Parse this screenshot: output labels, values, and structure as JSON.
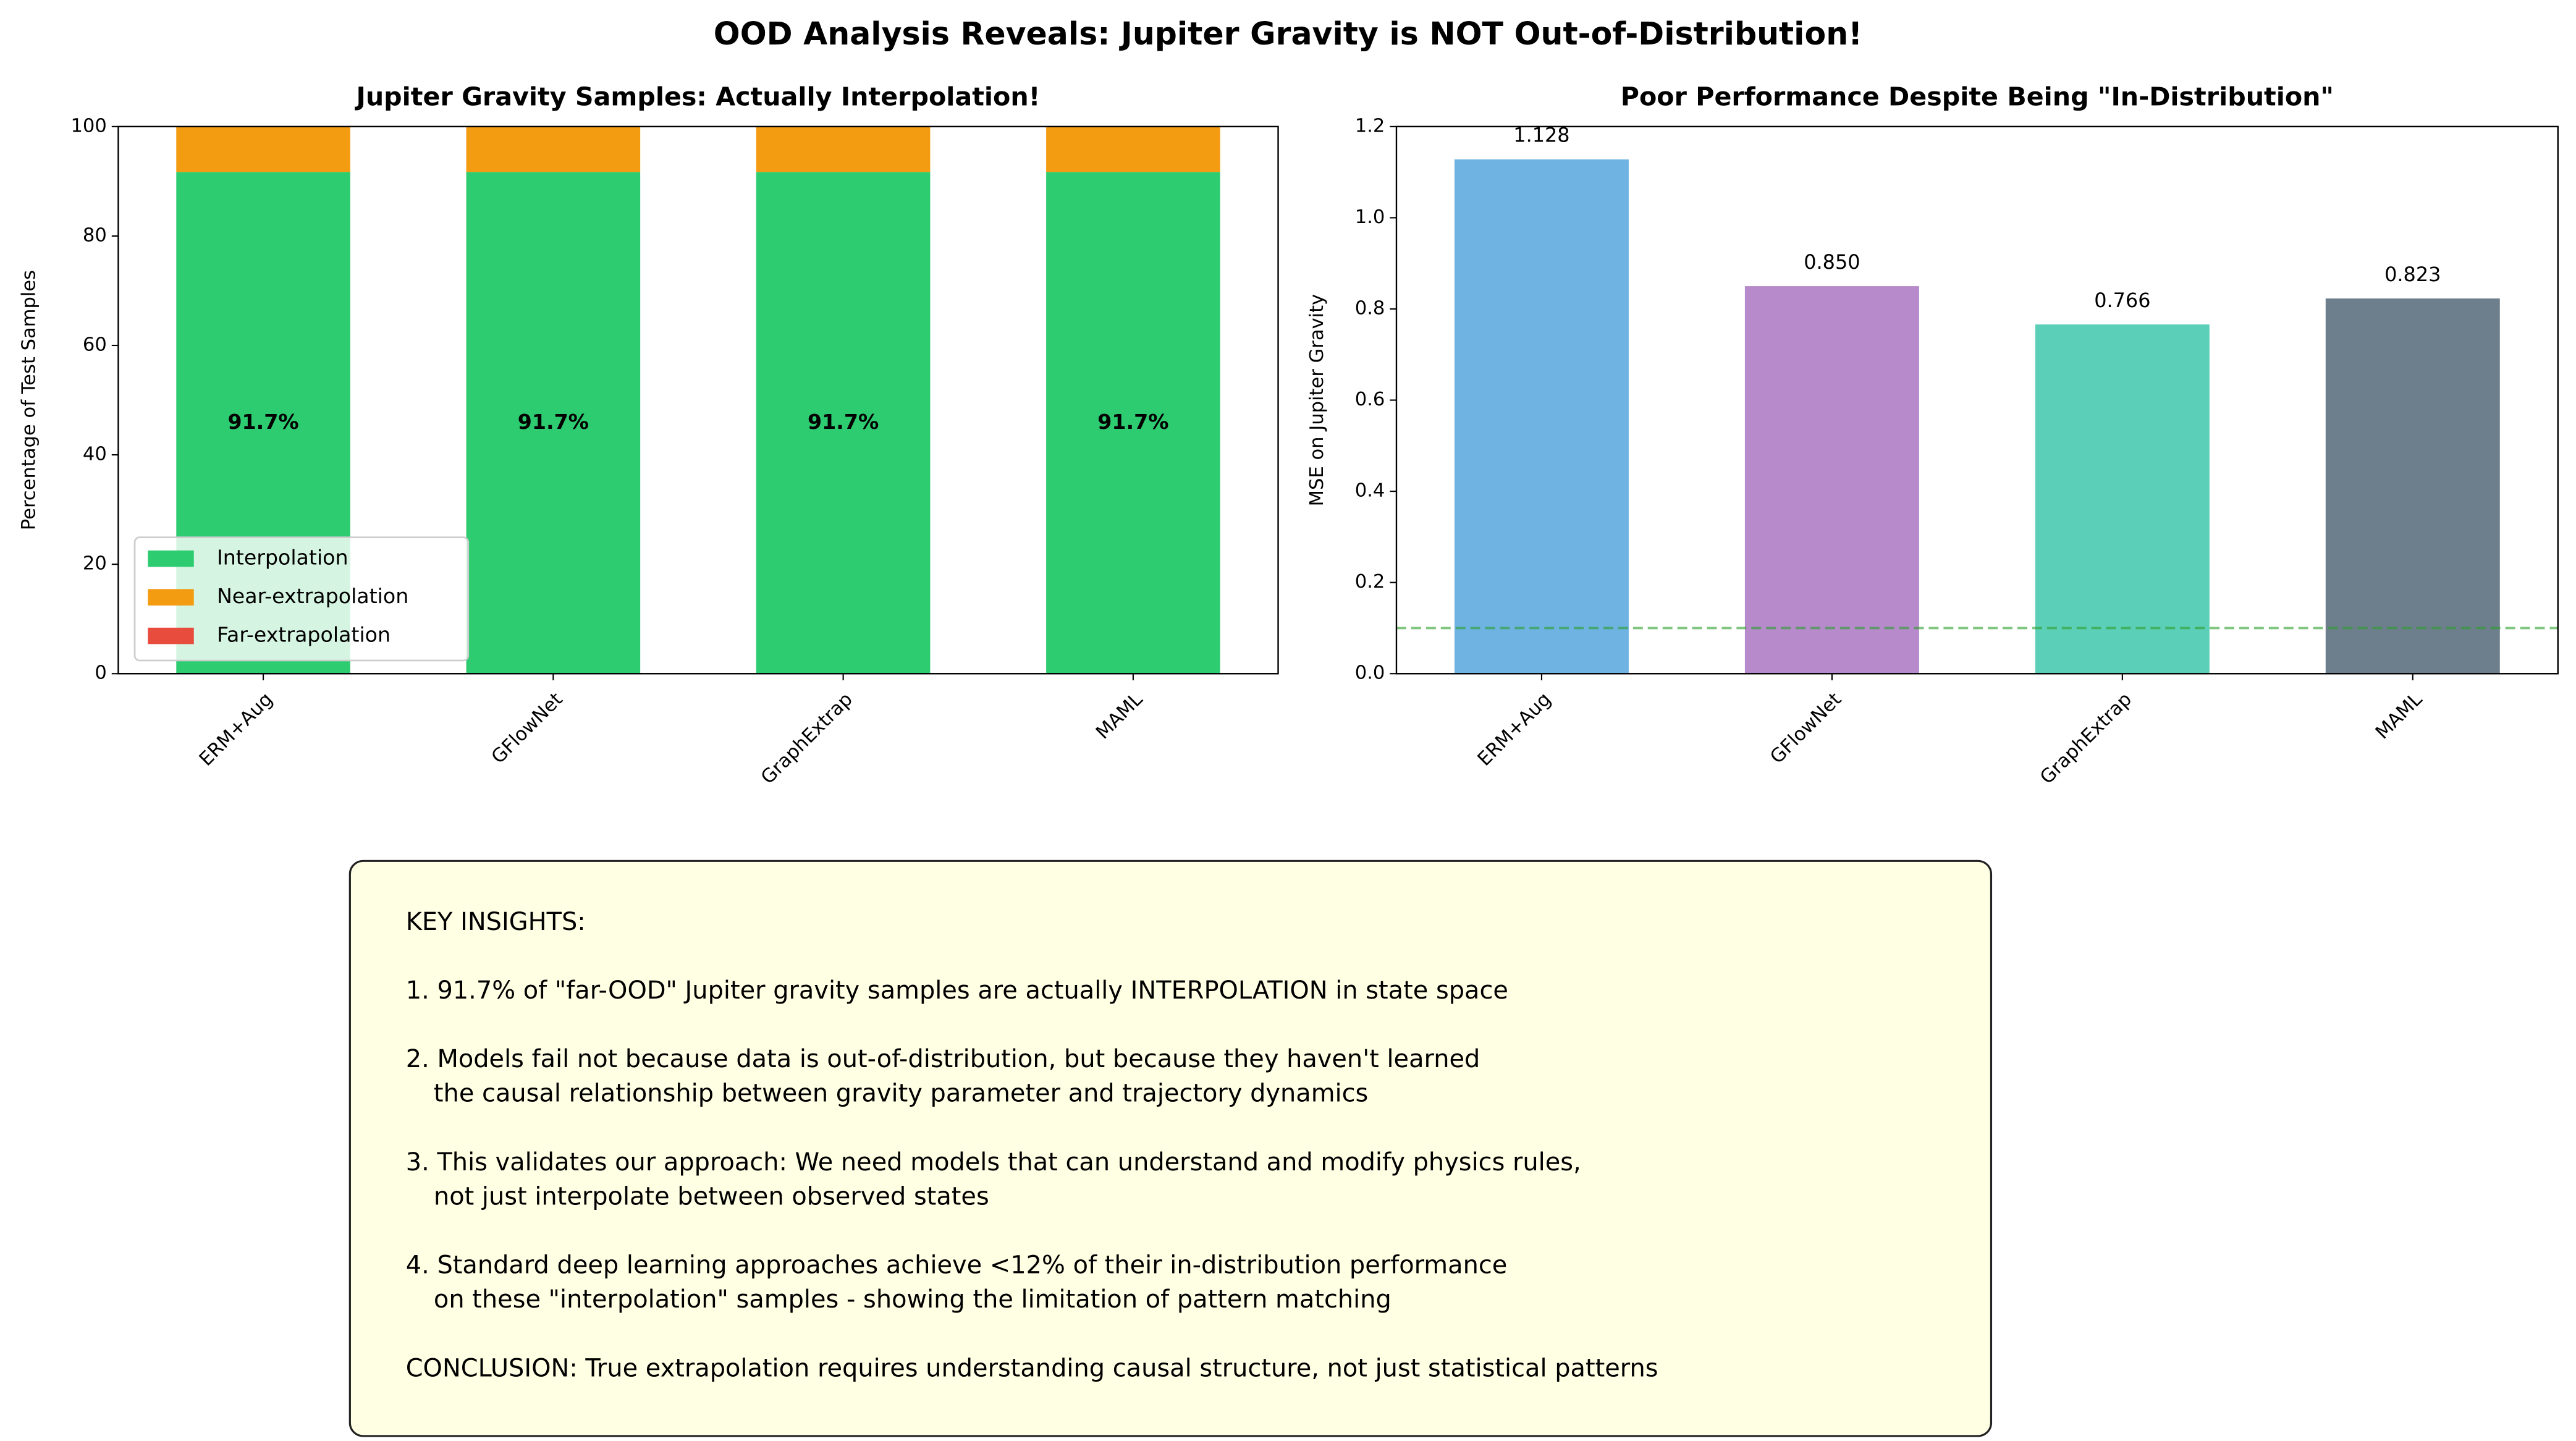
{
  "title": "OOD Analysis Reveals: Jupiter Gravity is NOT Out-of-Distribution!",
  "chart_data": [
    {
      "type": "stacked_bar",
      "title": "Jupiter Gravity Samples: Actually Interpolation!",
      "ylabel": "Percentage of Test Samples",
      "categories": [
        "ERM+Aug",
        "GFlowNet",
        "GraphExtrap",
        "MAML"
      ],
      "series": [
        {
          "name": "Interpolation",
          "color": "#2ecc71",
          "values": [
            91.7,
            91.7,
            91.7,
            91.7
          ],
          "value_labels": [
            "91.7%",
            "91.7%",
            "91.7%",
            "91.7%"
          ]
        },
        {
          "name": "Near-extrapolation",
          "color": "#f39c12",
          "values": [
            8.3,
            8.3,
            8.3,
            8.3
          ]
        },
        {
          "name": "Far-extrapolation",
          "color": "#e74c3c",
          "values": [
            0,
            0,
            0,
            0
          ]
        }
      ],
      "ylim": [
        0,
        100
      ],
      "yticks": [
        0,
        20,
        40,
        60,
        80,
        100
      ],
      "legend": "lower left"
    },
    {
      "type": "bar",
      "title": "Poor Performance Despite Being \"In-Distribution\"",
      "ylabel": "MSE on Jupiter Gravity",
      "categories": [
        "ERM+Aug",
        "GFlowNet",
        "GraphExtrap",
        "MAML"
      ],
      "values": [
        1.128,
        0.85,
        0.766,
        0.823
      ],
      "value_labels": [
        "1.128",
        "0.850",
        "0.766",
        "0.823"
      ],
      "colors": [
        "#6fb3e2",
        "#b68acb",
        "#5ccfb8",
        "#6d7e8c"
      ],
      "reference_line": {
        "value": 0.1,
        "color": "#2ca02c"
      },
      "ylim": [
        0,
        1.2
      ],
      "yticks": [
        {
          "value": 0,
          "label": "0.0"
        },
        {
          "value": 0.2,
          "label": "0.2"
        },
        {
          "value": 0.4,
          "label": "0.4"
        },
        {
          "value": 0.6,
          "label": "0.6"
        },
        {
          "value": 0.8,
          "label": "0.8"
        },
        {
          "value": 1,
          "label": "1.0"
        },
        {
          "value": 1.2,
          "label": "1.2"
        }
      ]
    }
  ],
  "insights": {
    "heading": "KEY INSIGHTS:",
    "items": [
      [
        "1. 91.7% of \"far-OOD\" Jupiter gravity samples are actually INTERPOLATION in state space"
      ],
      [
        "2. Models fail not because data is out-of-distribution, but because they haven't learned",
        "the causal relationship between gravity parameter and trajectory dynamics"
      ],
      [
        "3. This validates our approach: We need models that can understand and modify physics rules,",
        "not just interpolate between observed states"
      ],
      [
        "4. Standard deep learning approaches achieve <12% of their in-distribution performance",
        "on these \"interpolation\" samples - showing the limitation of pattern matching"
      ]
    ],
    "conclusion": "CONCLUSION: True extrapolation requires understanding causal structure, not just statistical patterns"
  }
}
